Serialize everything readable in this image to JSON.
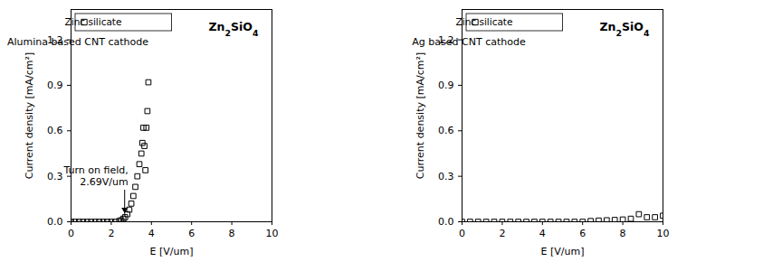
{
  "chart_data": [
    {
      "type": "scatter",
      "title": "Zn2SiO4",
      "subtitle": "Alumina based CNT cathode",
      "x_label": "E [V/um]",
      "y_label": "Current density [mA/cm²]",
      "xlim": [
        0,
        10
      ],
      "xticks": [
        0,
        2,
        4,
        6,
        8,
        10
      ],
      "ylim": [
        0,
        1.4
      ],
      "yticks": [
        {
          "value": 0,
          "label": "0.0"
        },
        0.3,
        0.6,
        0.9,
        1.2
      ],
      "grid": false,
      "legend": "top-left",
      "x": [
        0,
        0.2,
        0.4,
        0.6,
        0.8,
        1.0,
        1.2,
        1.4,
        1.6,
        1.8,
        2.0,
        2.2,
        2.4,
        2.5,
        2.6,
        2.69,
        2.8,
        2.9,
        3.0,
        3.1,
        3.2,
        3.3,
        3.4,
        3.5,
        3.55,
        3.6,
        3.65,
        3.7,
        3.75,
        3.8,
        3.85
      ],
      "series": [
        {
          "name": "Zinc silicate",
          "color": "#000000",
          "marker": "square",
          "values": [
            0,
            0,
            0,
            0,
            0,
            0,
            0,
            0,
            0,
            0,
            0,
            0,
            0.005,
            0.01,
            0.02,
            0.03,
            0.05,
            0.08,
            0.12,
            0.17,
            0.23,
            0.3,
            0.38,
            0.45,
            0.52,
            0.62,
            0.5,
            0.34,
            0.62,
            0.73,
            0.92
          ]
        }
      ],
      "annotations": [
        {
          "text": [
            "Turn on field,",
            "2.69V/um"
          ],
          "x": 2.69,
          "y": 0.03
        }
      ]
    },
    {
      "type": "scatter",
      "title": "Zn2SiO4",
      "subtitle": "Ag based CNT cathode",
      "x_label": "E [V/um]",
      "y_label": "Current density [mA/cm²]",
      "xlim": [
        0,
        10
      ],
      "xticks": [
        0,
        2,
        4,
        6,
        8,
        10
      ],
      "ylim": [
        0,
        1.4
      ],
      "yticks": [
        {
          "value": 0,
          "label": "0.0"
        },
        0.3,
        0.6,
        0.9,
        1.2
      ],
      "grid": false,
      "legend": "top-left",
      "x": [
        0,
        0.4,
        0.8,
        1.2,
        1.6,
        2.0,
        2.4,
        2.8,
        3.2,
        3.6,
        4.0,
        4.4,
        4.8,
        5.2,
        5.6,
        6.0,
        6.4,
        6.8,
        7.2,
        7.6,
        8.0,
        8.4,
        8.8,
        9.2,
        9.6,
        10.0
      ],
      "series": [
        {
          "name": "Zinc silicate",
          "color": "#000000",
          "marker": "square",
          "values": [
            0,
            0,
            0,
            0,
            0,
            0,
            0,
            0,
            0,
            0,
            0,
            0,
            0,
            0,
            0,
            0,
            0.005,
            0.008,
            0.01,
            0.012,
            0.015,
            0.02,
            0.05,
            0.03,
            0.03,
            0.04
          ]
        }
      ]
    }
  ]
}
